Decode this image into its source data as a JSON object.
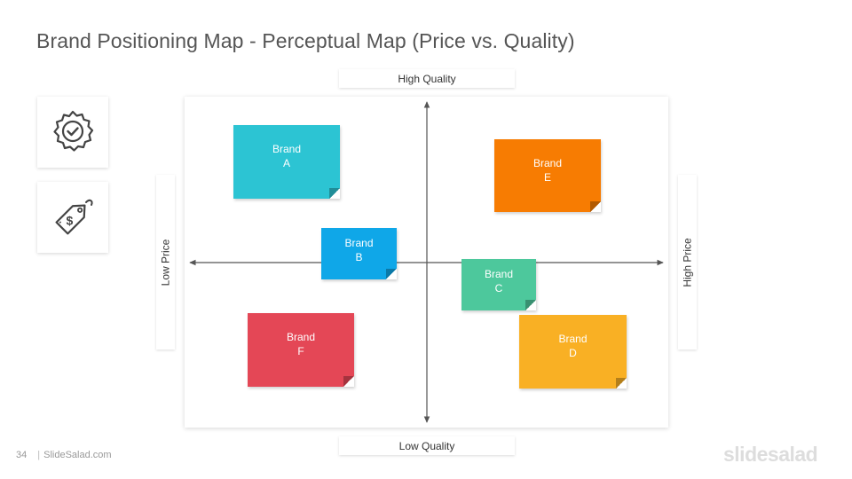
{
  "title": "Brand Positioning Map - Perceptual Map (Price vs. Quality)",
  "icons": {
    "badge": "badge-check-icon",
    "price_tag": "price-tag-icon"
  },
  "axis_labels": {
    "top": "High Quality",
    "bottom": "Low Quality",
    "left": "Low Price",
    "right": "High Price"
  },
  "brands": [
    {
      "line1": "Brand",
      "line2": "A",
      "color": "#2CC4D3"
    },
    {
      "line1": "Brand",
      "line2": "B",
      "color": "#0FA7E8"
    },
    {
      "line1": "Brand",
      "line2": "C",
      "color": "#4DC89C"
    },
    {
      "line1": "Brand",
      "line2": "D",
      "color": "#F9B024"
    },
    {
      "line1": "Brand",
      "line2": "E",
      "color": "#F77C02"
    },
    {
      "line1": "Brand",
      "line2": "F",
      "color": "#E44756"
    }
  ],
  "footer": {
    "page_number": "34",
    "site": "SlideSalad.com"
  },
  "logo": "slidesalad",
  "colors": {
    "title": "#555555",
    "axis": "#555555"
  }
}
